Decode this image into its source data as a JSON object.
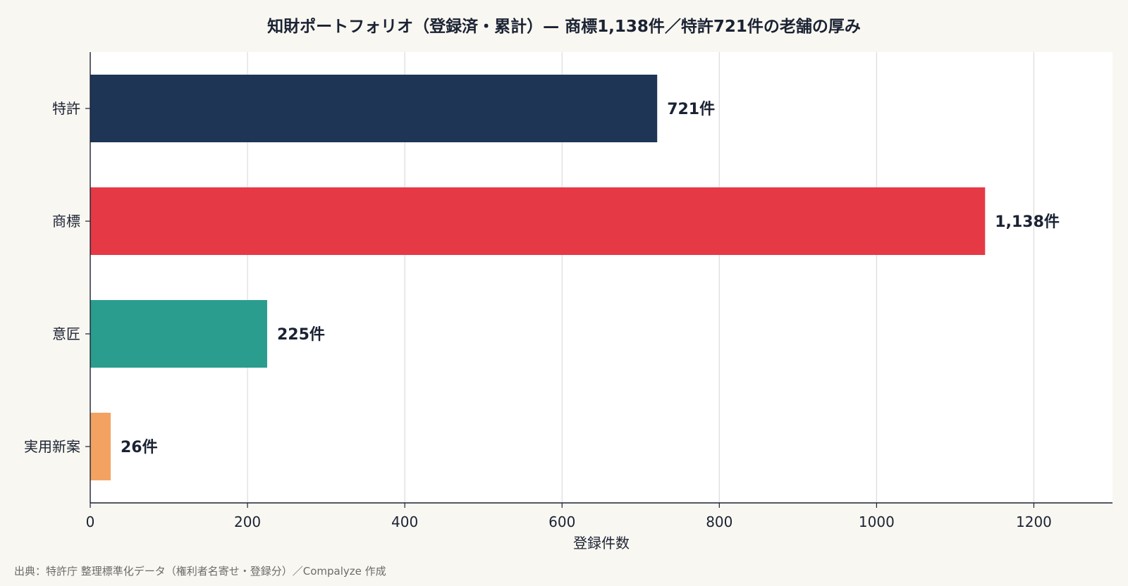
{
  "chart_data": {
    "type": "bar",
    "orientation": "horizontal",
    "title": "知財ポートフォリオ（登録済・累計）— 商標1,138件／特許721件の老舗の厚み",
    "categories": [
      "特許",
      "商標",
      "意匠",
      "実用新案"
    ],
    "values": [
      721,
      1138,
      225,
      26
    ],
    "data_labels": [
      "721件",
      "1,138件",
      "225件",
      "26件"
    ],
    "colors": [
      "#1e3555",
      "#e63946",
      "#2a9d8f",
      "#f4a261"
    ],
    "xlabel": "登録件数",
    "ylabel": "",
    "xlim": [
      0,
      1300
    ],
    "xticks": [
      0,
      200,
      400,
      600,
      800,
      1000,
      1200
    ],
    "xtick_labels": [
      "0",
      "200",
      "400",
      "600",
      "800",
      "1000",
      "1200"
    ],
    "grid": "vertical",
    "legend": "none",
    "background": "#ffffff"
  },
  "source_note": "出典：特許庁 整理標準化データ（権利者名寄せ・登録分）／Compalyze 作成"
}
